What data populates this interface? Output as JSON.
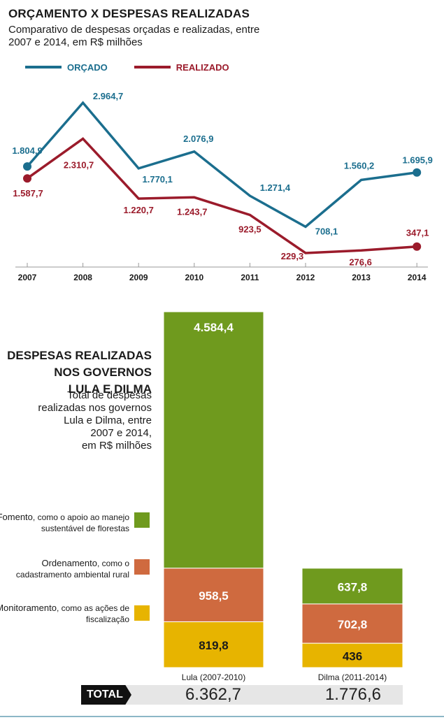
{
  "header": {
    "title": "ORÇAMENTO X DESPESAS REALIZADAS",
    "subtitle": "Comparativo de despesas orçadas e realizadas, entre 2007 e 2014, em R$ milhões"
  },
  "colors": {
    "orcado": "#1b6e8e",
    "realizado": "#9b1b2b",
    "fomento": "#6f9a1e",
    "ordenamento": "#cf6a3f",
    "monitoramento": "#e7b400",
    "axis": "#999999"
  },
  "chart_data": [
    {
      "type": "line",
      "x": [
        "2007",
        "2008",
        "2009",
        "2010",
        "2011",
        "2012",
        "2013",
        "2014"
      ],
      "series": [
        {
          "name": "ORÇADO",
          "values": [
            1804.9,
            2964.7,
            1770.1,
            2076.9,
            1271.4,
            708.1,
            1560.2,
            1695.9
          ],
          "labels": [
            "1.804,9",
            "2.964,7",
            "1.770,1",
            "2.076,9",
            "1.271,4",
            "708,1",
            "1.560,2",
            "1.695,9"
          ]
        },
        {
          "name": "REALIZADO",
          "values": [
            1587.7,
            2310.7,
            1220.7,
            1243.7,
            923.5,
            229.3,
            276.6,
            347.1
          ],
          "labels": [
            "1.587,7",
            "2.310,7",
            "1.220,7",
            "1.243,7",
            "923,5",
            "229,3",
            "276,6",
            "347,1"
          ]
        }
      ]
    },
    {
      "type": "bar",
      "stacked": true,
      "categories": [
        "Lula (2007-2010)",
        "Dilma (2011-2014)"
      ],
      "series": [
        {
          "name": "Monitoramento",
          "values": [
            819.8,
            436
          ],
          "labels": [
            "819,8",
            "436"
          ]
        },
        {
          "name": "Ordenamento",
          "values": [
            958.5,
            702.8
          ],
          "labels": [
            "958,5",
            "702,8"
          ]
        },
        {
          "name": "Fomento",
          "values": [
            4584.4,
            637.8
          ],
          "labels": [
            "4.584,4",
            "637,8"
          ]
        }
      ],
      "totals": [
        "6.362,7",
        "1.776,6"
      ]
    }
  ],
  "bar_section": {
    "title_lines": [
      "DESPESAS REALIZADAS",
      "NOS GOVERNOS",
      "LULA E DILMA"
    ],
    "subtitle_lines": [
      "Total de despesas",
      "realizadas nos governos",
      "Lula e Dilma, entre",
      "2007 e 2014,",
      "em R$ milhões"
    ],
    "categories": {
      "fomento": {
        "name": "Fomento",
        "desc": ", como o apoio ao manejo sustentável de florestas"
      },
      "ordenamento": {
        "name": "Ordenamento",
        "desc": ", como o cadastramento ambiental rural"
      },
      "monitoramento": {
        "name": "Monitoramento",
        "desc": ", como as ações de fiscalização"
      }
    },
    "total_label": "TOTAL"
  }
}
